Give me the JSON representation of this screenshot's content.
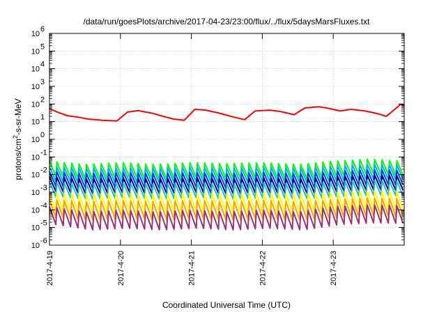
{
  "chart_data": {
    "type": "line",
    "title": "/data/run/goesPlots/archive/2017-04-23/23:00/flux/../flux/5daysMarsFluxes.txt",
    "xlabel": "Coordinated Universal Time (UTC)",
    "ylabel_main": "protons/cm",
    "ylabel_sup": "2",
    "ylabel_rest": "-s-sr-MeV",
    "x_range_days": [
      "2017-04-19",
      "2017-04-24"
    ],
    "x_tick_labels": [
      "2017-4-19",
      "2017-4-20",
      "2017-4-21",
      "2017-4-22",
      "2017-4-23"
    ],
    "y_scale": "log",
    "y_tick_exponents": [
      -6,
      -5,
      -4,
      -3,
      -2,
      -1,
      0,
      1,
      2,
      3,
      4,
      5,
      6
    ],
    "y_tick_base": "10",
    "grid": true,
    "series": [
      {
        "color": "#ff0000",
        "x_days": [
          0.0,
          0.11,
          0.25,
          0.4,
          0.55,
          0.75,
          0.95,
          1.1,
          1.25,
          1.45,
          1.6,
          1.75,
          1.9,
          2.05,
          2.2,
          2.4,
          2.6,
          2.75,
          2.9,
          3.1,
          3.25,
          3.45,
          3.6,
          3.8,
          3.95,
          4.1,
          4.25,
          4.45,
          4.6,
          4.75,
          4.95,
          5.0
        ],
        "values": [
          55,
          35,
          22,
          18,
          14,
          12,
          11,
          35,
          42,
          30,
          20,
          14,
          12,
          50,
          45,
          30,
          18,
          13,
          40,
          45,
          38,
          25,
          60,
          70,
          55,
          40,
          50,
          40,
          30,
          20,
          95,
          85
        ]
      },
      {
        "color": "#00ff00",
        "x_days": [
          0.0,
          0.5,
          1.0,
          1.5,
          2.0,
          2.5,
          3.0,
          3.5,
          4.0,
          4.5,
          5.0
        ],
        "values": [
          0.03,
          0.02,
          0.025,
          0.02,
          0.025,
          0.022,
          0.025,
          0.02,
          0.03,
          0.04,
          0.03
        ]
      },
      {
        "color": "#00b0ff",
        "x_days": [
          0.0,
          0.5,
          1.0,
          1.5,
          2.0,
          2.5,
          3.0,
          3.5,
          4.0,
          4.5,
          5.0
        ],
        "values": [
          0.015,
          0.012,
          0.013,
          0.012,
          0.014,
          0.012,
          0.014,
          0.012,
          0.016,
          0.02,
          0.018
        ]
      },
      {
        "color": "#0040ff",
        "x_days": [
          0.0,
          0.5,
          1.0,
          1.5,
          2.0,
          2.5,
          3.0,
          3.5,
          4.0,
          4.5,
          5.0
        ],
        "values": [
          0.008,
          0.006,
          0.007,
          0.006,
          0.007,
          0.006,
          0.007,
          0.006,
          0.008,
          0.01,
          0.009
        ]
      },
      {
        "color": "#00008b",
        "x_days": [
          0.0,
          0.5,
          1.0,
          1.5,
          2.0,
          2.5,
          3.0,
          3.5,
          4.0,
          4.5,
          5.0
        ],
        "values": [
          0.004,
          0.003,
          0.0035,
          0.003,
          0.0035,
          0.003,
          0.0035,
          0.003,
          0.004,
          0.005,
          0.0045
        ]
      },
      {
        "color": "#20c0c0",
        "x_days": [
          0.0,
          0.5,
          1.0,
          1.5,
          2.0,
          2.5,
          3.0,
          3.5,
          4.0,
          4.5,
          5.0
        ],
        "values": [
          0.002,
          0.0015,
          0.0018,
          0.0015,
          0.0018,
          0.0015,
          0.0018,
          0.0015,
          0.002,
          0.0025,
          0.0022
        ]
      },
      {
        "color": "#ffff00",
        "x_days": [
          0.0,
          0.5,
          1.0,
          1.5,
          2.0,
          2.5,
          3.0,
          3.5,
          4.0,
          4.5,
          5.0
        ],
        "values": [
          0.0005,
          0.0004,
          0.00045,
          0.0004,
          0.00045,
          0.0004,
          0.00045,
          0.0004,
          0.0005,
          0.0006,
          0.00055
        ]
      },
      {
        "color": "#ffa000",
        "x_days": [
          0.0,
          0.5,
          1.0,
          1.5,
          2.0,
          2.5,
          3.0,
          3.5,
          4.0,
          4.5,
          5.0
        ],
        "values": [
          0.0002,
          0.00015,
          0.00018,
          0.00015,
          0.00018,
          0.00015,
          0.00018,
          0.00015,
          0.0002,
          0.00025,
          0.00022
        ]
      },
      {
        "color": "#a03070",
        "x_days": [
          0.0,
          0.5,
          1.0,
          1.5,
          2.0,
          2.5,
          3.0,
          3.5,
          4.0,
          4.5,
          5.0
        ],
        "values": [
          8e-05,
          4e-05,
          5e-05,
          4e-05,
          5e-05,
          4e-05,
          5e-05,
          4e-05,
          8e-05,
          0.0001,
          9e-05
        ]
      }
    ]
  }
}
